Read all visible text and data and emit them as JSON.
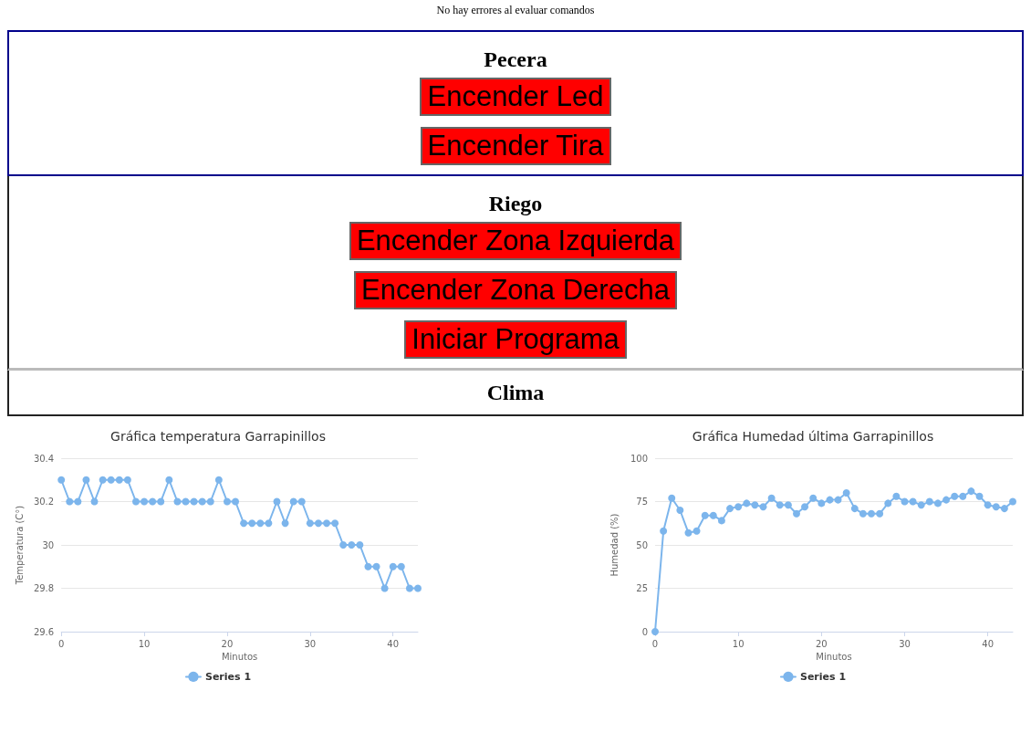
{
  "chart_data": [
    {
      "type": "other",
      "annotations": [
        "No hay errores al evaluar comandos"
      ]
    },
    {
      "type": "other",
      "title": "Pecera",
      "annotations": [
        "Encender Led",
        "Encender Tira"
      ]
    },
    {
      "type": "other",
      "title": "Riego",
      "annotations": [
        "Encender Zona Izquierda",
        "Encender Zona Derecha",
        "Iniciar Programa"
      ]
    },
    {
      "type": "other",
      "title": "Clima"
    },
    {
      "type": "line",
      "title": "Gráfica temperatura Garrapinillos",
      "xlabel": "Minutos",
      "ylabel": "Temperatura (C°)",
      "x": [
        0,
        1,
        2,
        3,
        4,
        5,
        6,
        7,
        8,
        9,
        10,
        11,
        12,
        13,
        14,
        15,
        16,
        17,
        18,
        19,
        20,
        21,
        22,
        23,
        24,
        25,
        26,
        27,
        28,
        29,
        30,
        31,
        32,
        33,
        34,
        35,
        36,
        37,
        38,
        39,
        40,
        41,
        42,
        43
      ],
      "series": [
        {
          "name": "Series 1",
          "color": "#7cb5ec",
          "values": [
            30.3,
            30.2,
            30.2,
            30.3,
            30.2,
            30.3,
            30.3,
            30.3,
            30.3,
            30.2,
            30.2,
            30.2,
            30.2,
            30.3,
            30.2,
            30.2,
            30.2,
            30.2,
            30.2,
            30.3,
            30.2,
            30.2,
            30.1,
            30.1,
            30.1,
            30.1,
            30.2,
            30.1,
            30.2,
            30.2,
            30.1,
            30.1,
            30.1,
            30.1,
            30,
            30,
            30,
            29.9,
            29.9,
            29.8,
            29.9,
            29.9,
            29.8,
            29.8
          ]
        }
      ],
      "xlim": [
        0,
        43
      ],
      "xticks": [
        0,
        10,
        20,
        30,
        40
      ],
      "ylim": [
        29.6,
        30.4
      ],
      "yticks": [
        29.6,
        29.8,
        30,
        30.2,
        30.4
      ],
      "grid": "y",
      "legend": "bottom",
      "marker": "circle",
      "line_style": "solid"
    },
    {
      "type": "line",
      "title": "Gráfica Humedad última Garrapinillos",
      "xlabel": "Minutos",
      "ylabel": "Humedad (%)",
      "x": [
        0,
        1,
        2,
        3,
        4,
        5,
        6,
        7,
        8,
        9,
        10,
        11,
        12,
        13,
        14,
        15,
        16,
        17,
        18,
        19,
        20,
        21,
        22,
        23,
        24,
        25,
        26,
        27,
        28,
        29,
        30,
        31,
        32,
        33,
        34,
        35,
        36,
        37,
        38,
        39,
        40,
        41,
        42,
        43
      ],
      "series": [
        {
          "name": "Series 1",
          "color": "#7cb5ec",
          "values": [
            0,
            58,
            77,
            70,
            57,
            58,
            67,
            67,
            64,
            71,
            72,
            74,
            73,
            72,
            77,
            73,
            73,
            68,
            72,
            77,
            74,
            76,
            76,
            80,
            71,
            68,
            68,
            68,
            74,
            78,
            75,
            75,
            73,
            75,
            74,
            76,
            78,
            78,
            81,
            78,
            73,
            72,
            71,
            75
          ]
        }
      ],
      "xlim": [
        0,
        43
      ],
      "xticks": [
        0,
        10,
        20,
        30,
        40
      ],
      "ylim": [
        0,
        100
      ],
      "yticks": [
        0,
        25,
        50,
        75,
        100
      ],
      "grid": "y",
      "legend": "bottom",
      "marker": "circle",
      "line_style": "solid"
    }
  ]
}
